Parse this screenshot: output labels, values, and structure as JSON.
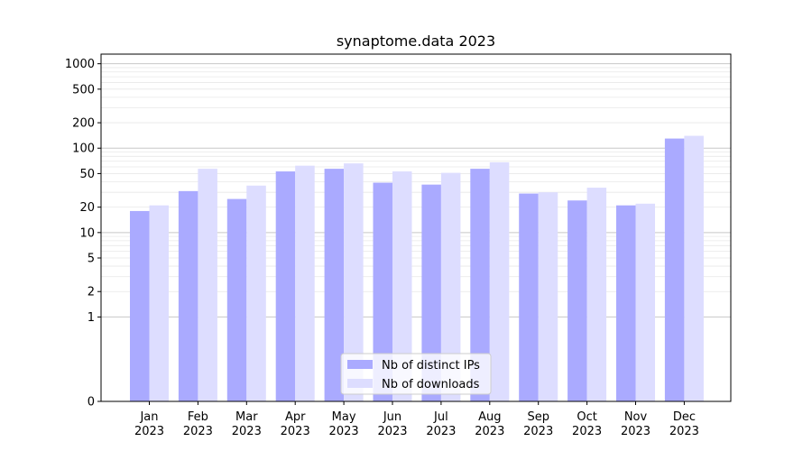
{
  "chart_data": {
    "type": "bar",
    "title": "synaptome.data 2023",
    "xlabel": "",
    "ylabel": "",
    "yscale": "symlog",
    "ylim": [
      0,
      1300
    ],
    "yticks": [
      0,
      1,
      2,
      5,
      10,
      20,
      50,
      100,
      200,
      500,
      1000
    ],
    "ytick_labels": [
      "0",
      "1",
      "2",
      "5",
      "10",
      "20",
      "50",
      "100",
      "200",
      "500",
      "1000"
    ],
    "categories": [
      {
        "month": "Jan",
        "year": "2023"
      },
      {
        "month": "Feb",
        "year": "2023"
      },
      {
        "month": "Mar",
        "year": "2023"
      },
      {
        "month": "Apr",
        "year": "2023"
      },
      {
        "month": "May",
        "year": "2023"
      },
      {
        "month": "Jun",
        "year": "2023"
      },
      {
        "month": "Jul",
        "year": "2023"
      },
      {
        "month": "Aug",
        "year": "2023"
      },
      {
        "month": "Sep",
        "year": "2023"
      },
      {
        "month": "Oct",
        "year": "2023"
      },
      {
        "month": "Nov",
        "year": "2023"
      },
      {
        "month": "Dec",
        "year": "2023"
      }
    ],
    "series": [
      {
        "name": "Nb of distinct IPs",
        "color": "#aaaaff",
        "values": [
          18,
          31,
          25,
          53,
          57,
          39,
          37,
          57,
          29,
          24,
          21,
          130
        ]
      },
      {
        "name": "Nb of downloads",
        "color": "#ddddff",
        "values": [
          21,
          57,
          36,
          62,
          66,
          53,
          51,
          68,
          30,
          34,
          22,
          140
        ]
      }
    ],
    "grid": true,
    "legend_position": "bottom-center"
  }
}
